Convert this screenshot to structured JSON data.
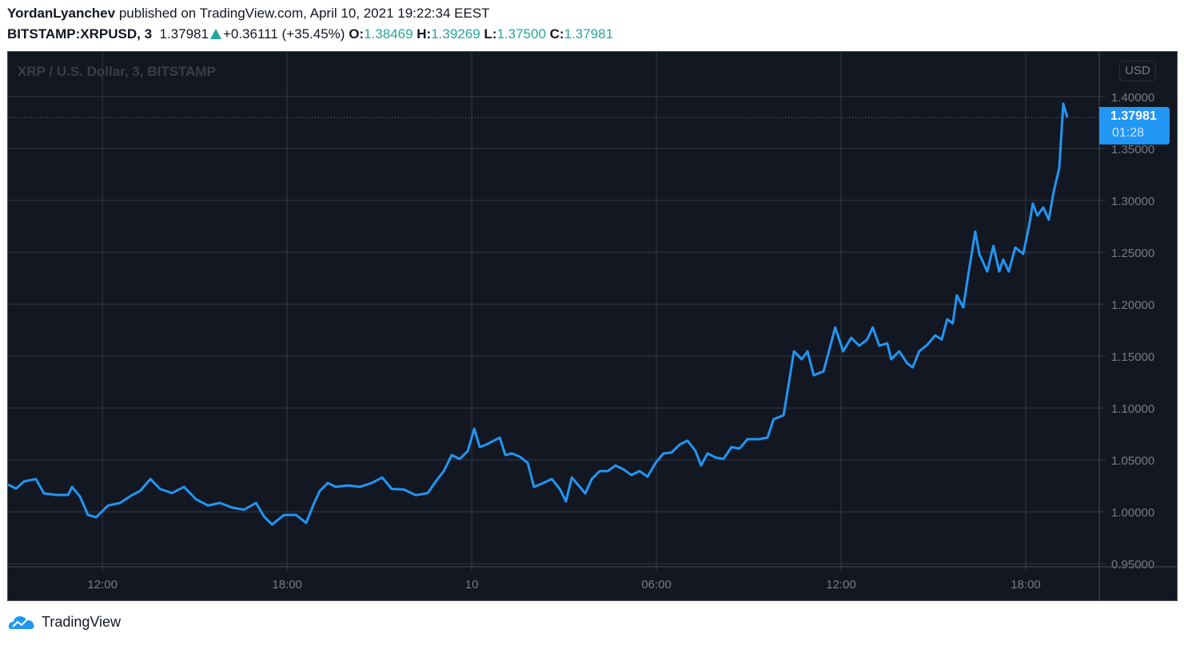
{
  "header": {
    "author": "YordanLyanchev",
    "published_text": "published on TradingView.com, April 10, 2021 19:22:34 EEST",
    "symbol": "BITSTAMP:XRPUSD, 3",
    "last_price": "1.37981",
    "change": "+0.36111 (+35.45%)",
    "o_label": "O:",
    "o_value": "1.38469",
    "h_label": "H:",
    "h_value": "1.39269",
    "l_label": "L:",
    "l_value": "1.37500",
    "c_label": "C:",
    "c_value": "1.37981"
  },
  "chart_legend": "XRP / U.S. Dollar, 3, BITSTAMP",
  "currency_button": "USD",
  "price_tag": {
    "price": "1.37981",
    "countdown": "01:28"
  },
  "footer": {
    "brand": "TradingView"
  },
  "colors": {
    "background": "#131722",
    "line": "#2196f3",
    "grid": "#363a45",
    "up": "#26a69a"
  },
  "chart_data": {
    "type": "line",
    "title": "XRP / U.S. Dollar, 3, BITSTAMP",
    "xlabel": "",
    "ylabel": "USD",
    "x_unit": "hours since April 9 00:00",
    "xlim": [
      8.93,
      44.39
    ],
    "ylim": [
      0.947,
      1.4431
    ],
    "grid": true,
    "x_ticks": [
      {
        "x": 12,
        "label": "12:00"
      },
      {
        "x": 18,
        "label": "18:00"
      },
      {
        "x": 24,
        "label": "10"
      },
      {
        "x": 30,
        "label": "06:00"
      },
      {
        "x": 36,
        "label": "12:00"
      },
      {
        "x": 42,
        "label": "18:00"
      }
    ],
    "y_ticks": [
      {
        "y": 1.4,
        "label": "1.40000"
      },
      {
        "y": 1.35,
        "label": "1.35000"
      },
      {
        "y": 1.3,
        "label": "1.30000"
      },
      {
        "y": 1.25,
        "label": "1.25000"
      },
      {
        "y": 1.2,
        "label": "1.20000"
      },
      {
        "y": 1.15,
        "label": "1.15000"
      },
      {
        "y": 1.1,
        "label": "1.10000"
      },
      {
        "y": 1.05,
        "label": "1.05000"
      },
      {
        "y": 1.0,
        "label": "1.00000"
      },
      {
        "y": 0.95,
        "label": "0.95000"
      }
    ],
    "last_value": 1.37981,
    "series": [
      {
        "name": "XRPUSD",
        "points": [
          [
            8.93,
            1.0262
          ],
          [
            9.19,
            1.0223
          ],
          [
            9.45,
            1.0292
          ],
          [
            9.84,
            1.0315
          ],
          [
            10.1,
            1.0177
          ],
          [
            10.49,
            1.0162
          ],
          [
            10.88,
            1.0162
          ],
          [
            11.01,
            1.024
          ],
          [
            11.27,
            1.0146
          ],
          [
            11.53,
            0.9969
          ],
          [
            11.79,
            0.9946
          ],
          [
            12.18,
            1.006
          ],
          [
            12.57,
            1.0085
          ],
          [
            12.96,
            1.016
          ],
          [
            13.22,
            1.02
          ],
          [
            13.56,
            1.0315
          ],
          [
            13.87,
            1.022
          ],
          [
            14.26,
            1.018
          ],
          [
            14.65,
            1.024
          ],
          [
            15.04,
            1.012
          ],
          [
            15.43,
            1.006
          ],
          [
            15.82,
            1.0085
          ],
          [
            16.21,
            1.004
          ],
          [
            16.6,
            1.002
          ],
          [
            16.99,
            1.0085
          ],
          [
            17.25,
            0.9954
          ],
          [
            17.51,
            0.9877
          ],
          [
            17.9,
            0.9969
          ],
          [
            18.29,
            0.9969
          ],
          [
            18.62,
            0.9892
          ],
          [
            18.88,
            1.0085
          ],
          [
            19.06,
            1.02
          ],
          [
            19.32,
            1.0277
          ],
          [
            19.58,
            1.024
          ],
          [
            19.97,
            1.0254
          ],
          [
            20.36,
            1.024
          ],
          [
            20.75,
            1.0277
          ],
          [
            21.09,
            1.033
          ],
          [
            21.4,
            1.022
          ],
          [
            21.79,
            1.0215
          ],
          [
            22.18,
            1.016
          ],
          [
            22.57,
            1.018
          ],
          [
            22.83,
            1.0292
          ],
          [
            23.09,
            1.0392
          ],
          [
            23.35,
            1.0546
          ],
          [
            23.61,
            1.0508
          ],
          [
            23.87,
            1.0585
          ],
          [
            24.08,
            1.08
          ],
          [
            24.26,
            1.0623
          ],
          [
            24.52,
            1.0654
          ],
          [
            24.91,
            1.0715
          ],
          [
            25.09,
            1.0546
          ],
          [
            25.3,
            1.0562
          ],
          [
            25.56,
            1.0531
          ],
          [
            25.82,
            1.0469
          ],
          [
            26.02,
            1.024
          ],
          [
            26.21,
            1.0262
          ],
          [
            26.6,
            1.0315
          ],
          [
            26.86,
            1.022
          ],
          [
            27.06,
            1.01
          ],
          [
            27.25,
            1.033
          ],
          [
            27.51,
            1.024
          ],
          [
            27.69,
            1.0177
          ],
          [
            27.9,
            1.0315
          ],
          [
            28.16,
            1.0392
          ],
          [
            28.42,
            1.0392
          ],
          [
            28.67,
            1.0446
          ],
          [
            28.93,
            1.0408
          ],
          [
            29.19,
            1.0354
          ],
          [
            29.45,
            1.0392
          ],
          [
            29.71,
            1.0338
          ],
          [
            29.97,
            1.0469
          ],
          [
            30.23,
            1.0562
          ],
          [
            30.49,
            1.057
          ],
          [
            30.75,
            1.0646
          ],
          [
            31.01,
            1.0685
          ],
          [
            31.27,
            1.0585
          ],
          [
            31.45,
            1.0446
          ],
          [
            31.66,
            1.0562
          ],
          [
            31.92,
            1.0523
          ],
          [
            32.18,
            1.0508
          ],
          [
            32.44,
            1.0623
          ],
          [
            32.7,
            1.0608
          ],
          [
            32.96,
            1.07
          ],
          [
            33.35,
            1.07
          ],
          [
            33.61,
            1.0715
          ],
          [
            33.81,
            1.0892
          ],
          [
            34.13,
            1.093
          ],
          [
            34.26,
            1.1162
          ],
          [
            34.47,
            1.1546
          ],
          [
            34.72,
            1.1469
          ],
          [
            34.91,
            1.1546
          ],
          [
            35.11,
            1.1315
          ],
          [
            35.43,
            1.1354
          ],
          [
            35.55,
            1.1485
          ],
          [
            35.81,
            1.1777
          ],
          [
            36.07,
            1.1546
          ],
          [
            36.33,
            1.1677
          ],
          [
            36.59,
            1.16
          ],
          [
            36.85,
            1.166
          ],
          [
            37.03,
            1.1777
          ],
          [
            37.24,
            1.16
          ],
          [
            37.5,
            1.1623
          ],
          [
            37.63,
            1.1469
          ],
          [
            37.89,
            1.1546
          ],
          [
            38.15,
            1.143
          ],
          [
            38.33,
            1.1392
          ],
          [
            38.54,
            1.1546
          ],
          [
            38.8,
            1.1608
          ],
          [
            39.06,
            1.17
          ],
          [
            39.27,
            1.166
          ],
          [
            39.45,
            1.1854
          ],
          [
            39.63,
            1.1815
          ],
          [
            39.76,
            1.2085
          ],
          [
            39.97,
            1.1969
          ],
          [
            40.15,
            1.2315
          ],
          [
            40.36,
            1.27
          ],
          [
            40.49,
            1.2485
          ],
          [
            40.75,
            1.2315
          ],
          [
            40.95,
            1.2562
          ],
          [
            41.14,
            1.2315
          ],
          [
            41.27,
            1.243
          ],
          [
            41.45,
            1.2315
          ],
          [
            41.66,
            1.2546
          ],
          [
            41.92,
            1.2485
          ],
          [
            42.1,
            1.2738
          ],
          [
            42.23,
            1.2969
          ],
          [
            42.38,
            1.2854
          ],
          [
            42.57,
            1.2931
          ],
          [
            42.75,
            1.2815
          ],
          [
            42.91,
            1.3085
          ],
          [
            43.09,
            1.3315
          ],
          [
            43.22,
            1.3931
          ],
          [
            43.35,
            1.3798
          ]
        ]
      }
    ]
  }
}
